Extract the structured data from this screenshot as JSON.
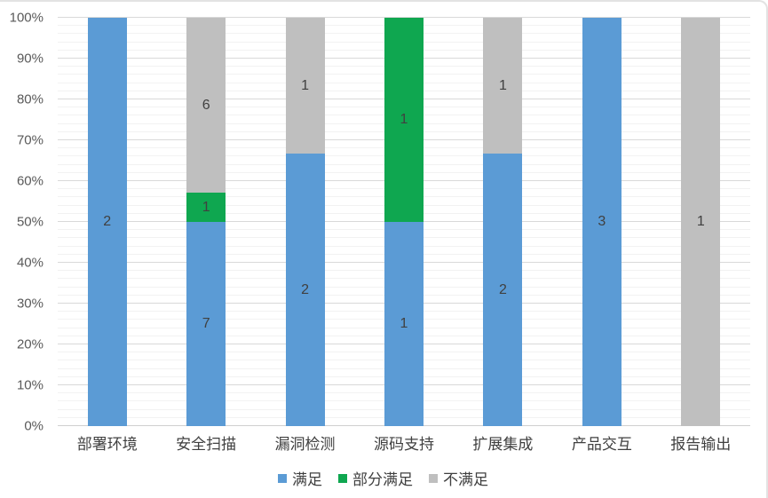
{
  "chart_data": {
    "type": "bar",
    "subtype": "stacked-100-percent-column",
    "title": "",
    "xlabel": "",
    "ylabel": "",
    "categories": [
      "部署环境",
      "安全扫描",
      "漏洞检测",
      "源码支持",
      "扩展集成",
      "产品交互",
      "报告输出"
    ],
    "series": [
      {
        "name": "满足",
        "color": "#5B9BD5",
        "values": [
          2,
          7,
          2,
          1,
          2,
          3,
          0
        ]
      },
      {
        "name": "部分满足",
        "color": "#0FA750",
        "values": [
          0,
          1,
          0,
          1,
          0,
          0,
          0
        ]
      },
      {
        "name": "不满足",
        "color": "#BFBFBF",
        "values": [
          0,
          6,
          1,
          0,
          1,
          0,
          1
        ]
      }
    ],
    "segment_percentages_by_category": [
      [
        100,
        0,
        0
      ],
      [
        50,
        7.14,
        42.86
      ],
      [
        66.67,
        0,
        33.33
      ],
      [
        50,
        50,
        0
      ],
      [
        66.67,
        0,
        33.33
      ],
      [
        100,
        0,
        0
      ],
      [
        0,
        0,
        100
      ]
    ],
    "y_ticks": [
      "0%",
      "10%",
      "20%",
      "30%",
      "40%",
      "50%",
      "60%",
      "70%",
      "80%",
      "90%",
      "100%"
    ],
    "ylim": [
      0,
      100
    ],
    "grid": true,
    "minor_grid_step_pct": 2,
    "major_grid_step_pct": 10,
    "legend_position": "bottom",
    "data_label_color": "#404040",
    "axis_label_color": "#595959"
  }
}
